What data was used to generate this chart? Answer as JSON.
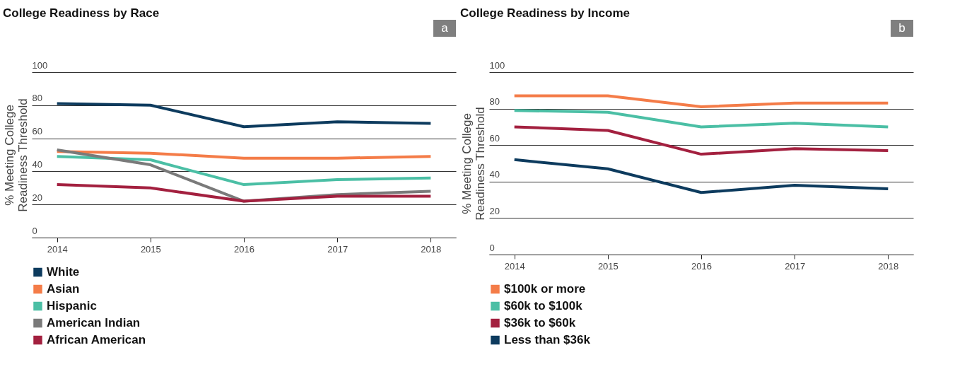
{
  "chart_data": [
    {
      "type": "line",
      "title": "College Readiness by Race",
      "ylabel": "% Meeting College Readiness Threshold",
      "annotations": [
        "a"
      ],
      "categories": [
        "2014",
        "2015",
        "2016",
        "2017",
        "2018"
      ],
      "ylim": [
        0,
        100
      ],
      "yticks": [
        0,
        20,
        40,
        60,
        80,
        100
      ],
      "grid": "y",
      "legend": "bottom",
      "line_style": "solid",
      "series": [
        {
          "name": "White",
          "color": "#0d3b5e",
          "values": [
            81,
            80,
            67,
            70,
            69
          ]
        },
        {
          "name": "Asian",
          "color": "#f47c48",
          "values": [
            52,
            51,
            48,
            48,
            49
          ]
        },
        {
          "name": "Hispanic",
          "color": "#4bbfa5",
          "values": [
            49,
            47,
            32,
            35,
            36
          ]
        },
        {
          "name": "American Indian",
          "color": "#7a7a7a",
          "values": [
            53,
            44,
            22,
            26,
            28
          ]
        },
        {
          "name": "African American",
          "color": "#a3203f",
          "values": [
            32,
            30,
            22,
            25,
            25
          ]
        }
      ]
    },
    {
      "type": "line",
      "title": "College Readiness by Income",
      "ylabel": "% Meeting College Readiness Threshold",
      "annotations": [
        "b"
      ],
      "categories": [
        "2014",
        "2015",
        "2016",
        "2017",
        "2018"
      ],
      "ylim": [
        0,
        100
      ],
      "yticks": [
        0,
        20,
        40,
        60,
        80,
        100
      ],
      "grid": "y",
      "legend": "bottom",
      "line_style": "solid",
      "series": [
        {
          "name": "$100k or more",
          "color": "#f47c48",
          "values": [
            87,
            87,
            81,
            83,
            83
          ]
        },
        {
          "name": "$60k to $100k",
          "color": "#4bbfa5",
          "values": [
            79,
            78,
            70,
            72,
            70
          ]
        },
        {
          "name": "$36k to $60k",
          "color": "#a3203f",
          "values": [
            70,
            68,
            55,
            58,
            57
          ]
        },
        {
          "name": "Less than $36k",
          "color": "#0d3b5e",
          "values": [
            52,
            47,
            34,
            38,
            36
          ]
        }
      ]
    }
  ]
}
